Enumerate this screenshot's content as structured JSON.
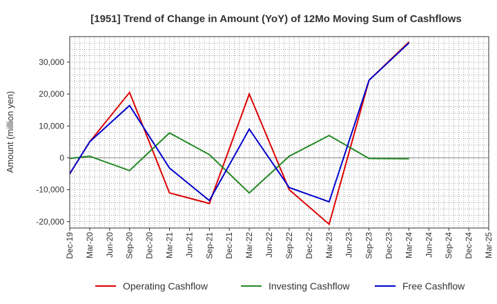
{
  "chart_data": {
    "type": "line",
    "title": "[1951]  Trend of Change in Amount (YoY) of 12Mo Moving Sum of Cashflows",
    "xlabel": "",
    "ylabel": "Amount (million yen)",
    "ylim": [
      -22000,
      38000
    ],
    "yticks": [
      -20000,
      -10000,
      0,
      10000,
      20000,
      30000
    ],
    "ytick_labels": [
      "-20,000",
      "-10,000",
      "0",
      "10,000",
      "20,000",
      "30,000"
    ],
    "grid": true,
    "legend_position": "bottom",
    "categories": [
      "Dec-19",
      "Mar-20",
      "Jun-20",
      "Sep-20",
      "Dec-20",
      "Mar-21",
      "Jun-21",
      "Sep-21",
      "Dec-21",
      "Mar-22",
      "Jun-22",
      "Sep-22",
      "Dec-22",
      "Mar-23",
      "Jun-23",
      "Sep-23",
      "Dec-23",
      "Mar-24",
      "Jun-24",
      "Sep-24",
      "Dec-24",
      "Mar-25"
    ],
    "series": [
      {
        "name": "Operating Cashflow",
        "color": "#dd0000",
        "values": [
          -5000,
          5000,
          null,
          20500,
          null,
          -11000,
          null,
          -14300,
          null,
          20000,
          null,
          -10000,
          null,
          -20800,
          null,
          24300,
          null,
          36300,
          null,
          null,
          null,
          null
        ]
      },
      {
        "name": "Investing Cashflow",
        "color": "#228822",
        "values": [
          -200,
          500,
          null,
          -4000,
          null,
          7800,
          null,
          1000,
          null,
          -11000,
          null,
          500,
          null,
          7000,
          null,
          -200,
          null,
          -300,
          null,
          null,
          null,
          null
        ]
      },
      {
        "name": "Free Cashflow",
        "color": "#0000cc",
        "values": [
          -5000,
          5000,
          null,
          16400,
          null,
          -3200,
          null,
          -13400,
          null,
          9000,
          null,
          -9300,
          null,
          -13800,
          null,
          24300,
          null,
          36000,
          null,
          null,
          null,
          null
        ]
      }
    ]
  }
}
